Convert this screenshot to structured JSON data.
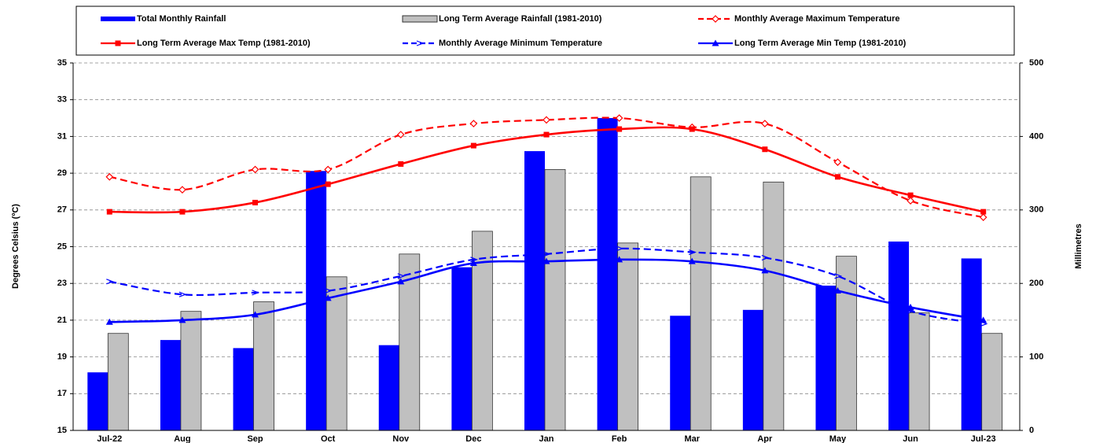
{
  "chart_data": {
    "type": "bar_line",
    "y_label": "Degrees Celsius (ºC)",
    "y2_label": "Millimetres",
    "categories": [
      "Jul-22",
      "Aug",
      "Sep",
      "Oct",
      "Nov",
      "Dec",
      "Jan",
      "Feb",
      "Mar",
      "Apr",
      "May",
      "Jun",
      "Jul-23"
    ],
    "ylim": [
      15,
      35
    ],
    "yticks": [
      15,
      17,
      19,
      21,
      23,
      25,
      27,
      29,
      31,
      33,
      35
    ],
    "y2lim": [
      0,
      500
    ],
    "y2ticks": [
      0,
      100,
      200,
      300,
      400,
      500
    ],
    "grid": true,
    "legend": "top",
    "series": [
      {
        "name": "Total Monthly Rainfall",
        "type": "bar",
        "axis": "y2",
        "color": "#0000ff",
        "values": [
          79,
          123,
          112,
          353,
          116,
          222,
          380,
          425,
          156,
          164,
          197,
          257,
          234
        ]
      },
      {
        "name": "Long Term Average Rainfall (1981-2010)",
        "type": "bar",
        "axis": "y2",
        "color": "#c0c0c0",
        "values": [
          132,
          162,
          175,
          209,
          240,
          271,
          355,
          255,
          345,
          338,
          237,
          160,
          132
        ]
      },
      {
        "name": "Monthly Average Maximum Temperature",
        "type": "line",
        "dashed": true,
        "marker": "diamond",
        "color": "#ff0000",
        "values": [
          28.8,
          28.1,
          29.2,
          29.2,
          31.1,
          31.7,
          31.9,
          32.0,
          31.5,
          31.7,
          29.6,
          27.5,
          26.6
        ]
      },
      {
        "name": "Long Term Average Max Temp (1981-2010)",
        "type": "line",
        "dashed": false,
        "marker": "square",
        "color": "#ff0000",
        "values": [
          26.9,
          26.9,
          27.4,
          28.4,
          29.5,
          30.5,
          31.1,
          31.4,
          31.4,
          30.3,
          28.8,
          27.8,
          26.9
        ]
      },
      {
        "name": "Monthly Average Minimum Temperature",
        "type": "line",
        "dashed": true,
        "marker": "arrow",
        "color": "#0000ff",
        "values": [
          23.1,
          22.4,
          22.5,
          22.6,
          23.4,
          24.3,
          24.6,
          24.9,
          24.7,
          24.4,
          23.4,
          21.5,
          20.8
        ]
      },
      {
        "name": "Long Term Average Min Temp (1981-2010)",
        "type": "line",
        "dashed": false,
        "marker": "triangle",
        "color": "#0000ff",
        "values": [
          20.9,
          21.0,
          21.3,
          22.2,
          23.1,
          24.1,
          24.2,
          24.3,
          24.2,
          23.7,
          22.6,
          21.7,
          21.0
        ]
      }
    ]
  }
}
